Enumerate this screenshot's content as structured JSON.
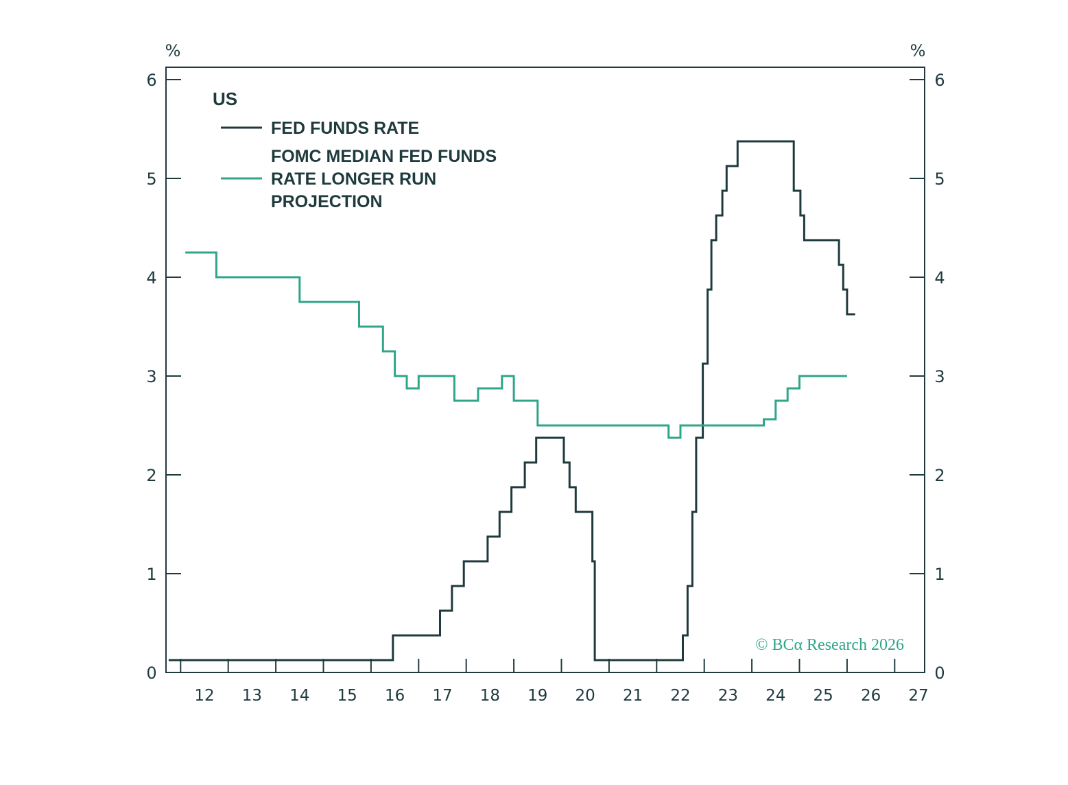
{
  "chart_data": {
    "type": "line",
    "step": true,
    "unit_left": "%",
    "unit_right": "%",
    "region_label": "US",
    "ylim": [
      0,
      6
    ],
    "xlim": [
      11.2,
      27
    ],
    "y_ticks": [
      "0",
      "1",
      "2",
      "3",
      "4",
      "5",
      "6"
    ],
    "x_ticks": [
      "12",
      "13",
      "14",
      "15",
      "16",
      "17",
      "18",
      "19",
      "20",
      "21",
      "22",
      "23",
      "24",
      "25",
      "26",
      "27"
    ],
    "x_tick_values": [
      12,
      13,
      14,
      15,
      16,
      17,
      18,
      19,
      20,
      21,
      22,
      23,
      24,
      25,
      26,
      27
    ],
    "legend_position": "top-left",
    "grid": false,
    "copyright": "© BCα Research 2026",
    "series": [
      {
        "name": "FED FUNDS RATE",
        "color": "#1f3a3d",
        "points": [
          [
            11.25,
            0.125
          ],
          [
            15.96,
            0.125
          ],
          [
            15.96,
            0.375
          ],
          [
            16.95,
            0.375
          ],
          [
            16.95,
            0.625
          ],
          [
            17.2,
            0.625
          ],
          [
            17.2,
            0.875
          ],
          [
            17.45,
            0.875
          ],
          [
            17.45,
            1.125
          ],
          [
            17.95,
            1.125
          ],
          [
            17.95,
            1.375
          ],
          [
            18.2,
            1.375
          ],
          [
            18.2,
            1.625
          ],
          [
            18.45,
            1.625
          ],
          [
            18.45,
            1.875
          ],
          [
            18.73,
            1.875
          ],
          [
            18.73,
            2.125
          ],
          [
            18.97,
            2.125
          ],
          [
            18.97,
            2.375
          ],
          [
            19.55,
            2.375
          ],
          [
            19.55,
            2.125
          ],
          [
            19.67,
            2.125
          ],
          [
            19.67,
            1.875
          ],
          [
            19.8,
            1.875
          ],
          [
            19.8,
            1.625
          ],
          [
            20.15,
            1.625
          ],
          [
            20.15,
            1.125
          ],
          [
            20.2,
            1.125
          ],
          [
            20.2,
            0.125
          ],
          [
            22.05,
            0.125
          ],
          [
            22.05,
            0.375
          ],
          [
            22.15,
            0.375
          ],
          [
            22.15,
            0.875
          ],
          [
            22.25,
            0.875
          ],
          [
            22.25,
            1.625
          ],
          [
            22.33,
            1.625
          ],
          [
            22.33,
            2.375
          ],
          [
            22.47,
            2.375
          ],
          [
            22.47,
            3.125
          ],
          [
            22.57,
            3.125
          ],
          [
            22.57,
            3.875
          ],
          [
            22.65,
            3.875
          ],
          [
            22.65,
            4.375
          ],
          [
            22.75,
            4.375
          ],
          [
            22.75,
            4.625
          ],
          [
            22.88,
            4.625
          ],
          [
            22.88,
            4.875
          ],
          [
            22.97,
            4.875
          ],
          [
            22.97,
            5.125
          ],
          [
            23.2,
            5.125
          ],
          [
            23.2,
            5.375
          ],
          [
            24.38,
            5.375
          ],
          [
            24.38,
            4.875
          ],
          [
            24.52,
            4.875
          ],
          [
            24.52,
            4.625
          ],
          [
            24.6,
            4.625
          ],
          [
            24.6,
            4.375
          ],
          [
            25.33,
            4.375
          ],
          [
            25.33,
            4.125
          ],
          [
            25.42,
            4.125
          ],
          [
            25.42,
            3.875
          ],
          [
            25.5,
            3.875
          ],
          [
            25.5,
            3.625
          ],
          [
            25.67,
            3.625
          ]
        ]
      },
      {
        "name": "FOMC MEDIAN FED FUNDS RATE LONGER RUN PROJECTION",
        "color": "#2fa58a",
        "points": [
          [
            11.6,
            4.25
          ],
          [
            12.25,
            4.25
          ],
          [
            12.25,
            4.0
          ],
          [
            14.0,
            4.0
          ],
          [
            14.0,
            3.75
          ],
          [
            15.25,
            3.75
          ],
          [
            15.25,
            3.5
          ],
          [
            15.75,
            3.5
          ],
          [
            15.75,
            3.25
          ],
          [
            16.0,
            3.25
          ],
          [
            16.0,
            3.0
          ],
          [
            16.25,
            3.0
          ],
          [
            16.25,
            2.875
          ],
          [
            16.5,
            2.875
          ],
          [
            16.5,
            3.0
          ],
          [
            17.25,
            3.0
          ],
          [
            17.25,
            2.75
          ],
          [
            17.75,
            2.75
          ],
          [
            17.75,
            2.875
          ],
          [
            18.25,
            2.875
          ],
          [
            18.25,
            3.0
          ],
          [
            18.5,
            3.0
          ],
          [
            18.5,
            2.75
          ],
          [
            19.0,
            2.75
          ],
          [
            19.0,
            2.5
          ],
          [
            21.75,
            2.5
          ],
          [
            21.75,
            2.375
          ],
          [
            22.0,
            2.375
          ],
          [
            22.0,
            2.5
          ],
          [
            23.75,
            2.5
          ],
          [
            23.75,
            2.5625
          ],
          [
            24.0,
            2.5625
          ],
          [
            24.0,
            2.75
          ],
          [
            24.25,
            2.75
          ],
          [
            24.25,
            2.875
          ],
          [
            24.5,
            2.875
          ],
          [
            24.5,
            3.0
          ],
          [
            25.5,
            3.0
          ]
        ]
      }
    ]
  }
}
